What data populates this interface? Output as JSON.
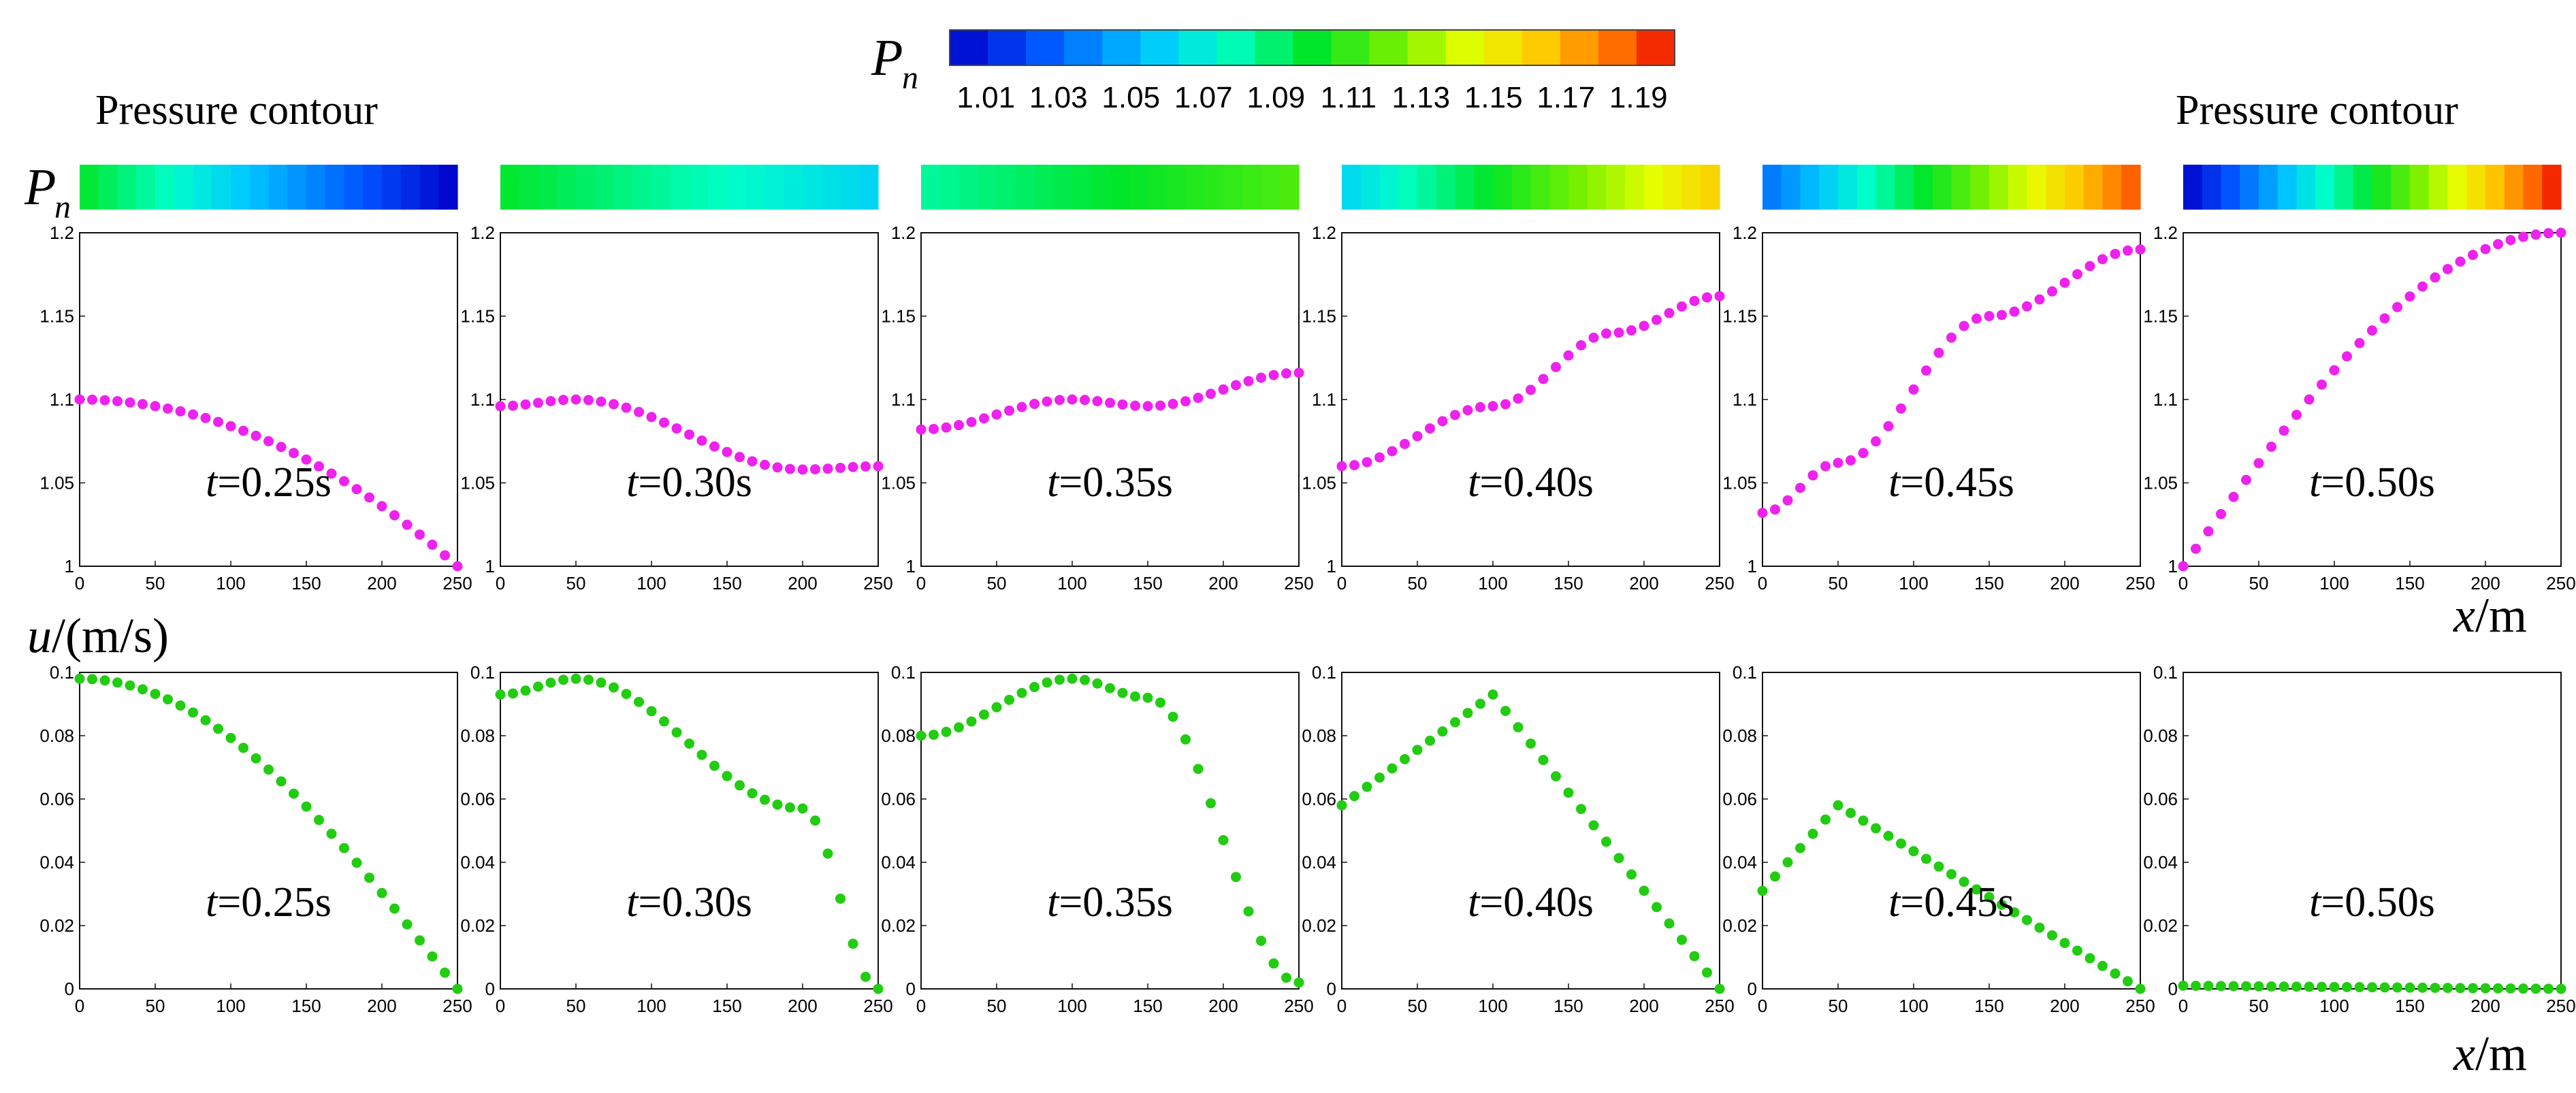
{
  "legend": {
    "symbol": "P",
    "subscript": "n",
    "ticks": [
      "1.01",
      "1.03",
      "1.05",
      "1.07",
      "1.09",
      "1.11",
      "1.13",
      "1.15",
      "1.17",
      "1.19"
    ]
  },
  "labels": {
    "contour_left": "Pressure contour",
    "contour_right": "Pressure contour",
    "pn_symbol": "P",
    "pn_subscript": "n",
    "u_var": "u",
    "u_unit": "/(m/s)",
    "x_var_top": "x",
    "x_unit_top": "/m",
    "x_var_bottom": "x",
    "x_unit_bottom": "/m"
  },
  "chart_data": {
    "type": "scatter",
    "title": "Pressure contour",
    "x_ticks": [
      "0",
      "50",
      "100",
      "150",
      "200",
      "250"
    ],
    "xlim": [
      0,
      250
    ],
    "pressure_axis": {
      "ylabel": "P_n",
      "ylim": [
        1.0,
        1.2
      ],
      "y_ticks": [
        "1",
        "1.05",
        "1.1",
        "1.15",
        "1.2"
      ],
      "marker_color": "#ee22ee"
    },
    "velocity_axis": {
      "ylabel": "u/(m/s)",
      "ylim": [
        0,
        0.1
      ],
      "y_ticks": [
        "0",
        "0.02",
        "0.04",
        "0.06",
        "0.08",
        "0.1"
      ],
      "marker_color": "#22cc11"
    },
    "panels": [
      {
        "time_var": "t",
        "time_value": "=0.25s",
        "pressure": {
          "x": [
            0,
            100,
            250
          ],
          "y": [
            1.1,
            1.082,
            1.0
          ],
          "shape": "parabola"
        },
        "velocity": {
          "x": [
            0,
            250
          ],
          "y": [
            0.098,
            0.0
          ],
          "shape": "cosine"
        },
        "contour": {
          "from": 1.1,
          "to": 1.0
        }
      },
      {
        "time_var": "t",
        "time_value": "=0.30s",
        "pressure": {
          "x": [
            0,
            50,
            200,
            250
          ],
          "y": [
            1.096,
            1.1,
            1.058,
            1.06
          ],
          "shape": "smooth"
        },
        "velocity": {
          "x": [
            0,
            50,
            200,
            250
          ],
          "y": [
            0.093,
            0.098,
            0.057,
            0.0
          ],
          "shape": "smooth"
        },
        "contour": {
          "from": 1.1,
          "to": 1.06
        }
      },
      {
        "time_var": "t",
        "time_value": "=0.35s",
        "pressure": {
          "x": [
            0,
            100,
            150,
            250
          ],
          "y": [
            1.082,
            1.1,
            1.096,
            1.116
          ],
          "shape": "smooth"
        },
        "velocity": {
          "x": [
            0,
            100,
            150,
            250
          ],
          "y": [
            0.08,
            0.098,
            0.092,
            0.002
          ],
          "shape": "smooth"
        },
        "contour": {
          "from": 1.082,
          "to": 1.116
        }
      },
      {
        "time_var": "t",
        "time_value": "=0.40s",
        "pressure": {
          "x": [
            0,
            100,
            180,
            250
          ],
          "y": [
            1.06,
            1.096,
            1.14,
            1.162
          ],
          "shape": "smooth"
        },
        "velocity": {
          "x": [
            0,
            100,
            250
          ],
          "y": [
            0.058,
            0.093,
            0.0
          ],
          "shape": "linear"
        },
        "contour": {
          "from": 1.06,
          "to": 1.162
        }
      },
      {
        "time_var": "t",
        "time_value": "=0.45s",
        "pressure": {
          "x": [
            0,
            50,
            150,
            250
          ],
          "y": [
            1.032,
            1.062,
            1.15,
            1.19
          ],
          "shape": "smooth"
        },
        "velocity": {
          "x": [
            0,
            50,
            250
          ],
          "y": [
            0.031,
            0.058,
            0.0
          ],
          "shape": "linear"
        },
        "contour": {
          "from": 1.032,
          "to": 1.19
        }
      },
      {
        "time_var": "t",
        "time_value": "=0.50s",
        "pressure": {
          "x": [
            0,
            125,
            250
          ],
          "y": [
            1.0,
            1.15,
            1.2
          ],
          "shape": "sine"
        },
        "velocity": {
          "x": [
            0,
            250
          ],
          "y": [
            0.001,
            0.0
          ],
          "shape": "linear"
        },
        "contour": {
          "from": 1.0,
          "to": 1.2
        }
      }
    ]
  }
}
